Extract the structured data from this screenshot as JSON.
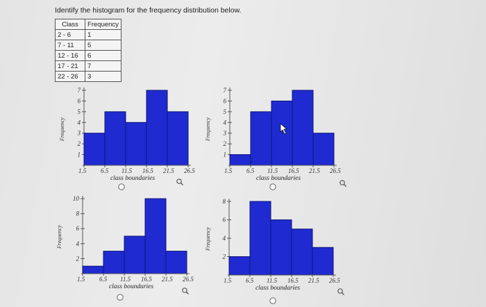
{
  "question": "Identify the histogram for the frequency distribution below.",
  "table": {
    "headers": [
      "Class",
      "Frequency"
    ],
    "rows": [
      [
        "2 - 6",
        "1"
      ],
      [
        "7 - 11",
        "5"
      ],
      [
        "12 - 16",
        "6"
      ],
      [
        "17 - 21",
        "7"
      ],
      [
        "22 - 26",
        "3"
      ]
    ]
  },
  "colors": {
    "bar_fill": "#1f2bd0",
    "bar_stroke": "#0d1477",
    "axis": "#555555"
  },
  "chart_data": [
    {
      "type": "bar",
      "ylabel": "Frequency",
      "xlabel": "class boundaries",
      "x_ticks": [
        "1.5",
        "6.5",
        "11.5",
        "16.5",
        "21.5",
        "26.5"
      ],
      "y_ticks": [
        "1",
        "2",
        "3",
        "4",
        "5",
        "6",
        "7"
      ],
      "ylim": [
        0,
        7
      ],
      "values": [
        3,
        5,
        4,
        7,
        5
      ]
    },
    {
      "type": "bar",
      "ylabel": "Frequency",
      "xlabel": "class boundaries",
      "x_ticks": [
        "1.5",
        "6.5",
        "11.5",
        "16.5",
        "21.5",
        "26.5"
      ],
      "y_ticks": [
        "1",
        "2",
        "3",
        "4",
        "5",
        "6",
        "7"
      ],
      "ylim": [
        0,
        7
      ],
      "values": [
        1,
        5,
        6,
        7,
        3
      ]
    },
    {
      "type": "bar",
      "ylabel": "Frequency",
      "xlabel": "class boundaries",
      "x_ticks": [
        "1.5",
        "6.5",
        "11.5",
        "16.5",
        "21.5",
        "26.5"
      ],
      "y_ticks": [
        "2",
        "4",
        "6",
        "8",
        "10"
      ],
      "ylim": [
        0,
        10
      ],
      "values": [
        1,
        3,
        5,
        10,
        3
      ]
    },
    {
      "type": "bar",
      "ylabel": "Frequency",
      "xlabel": "class boundaries",
      "x_ticks": [
        "1.5",
        "6.5",
        "11.5",
        "16.5",
        "21.5",
        "26.5"
      ],
      "y_ticks": [
        "2",
        "4",
        "6",
        "8"
      ],
      "ylim": [
        0,
        8
      ],
      "values": [
        2,
        8,
        6,
        5,
        3
      ]
    }
  ]
}
